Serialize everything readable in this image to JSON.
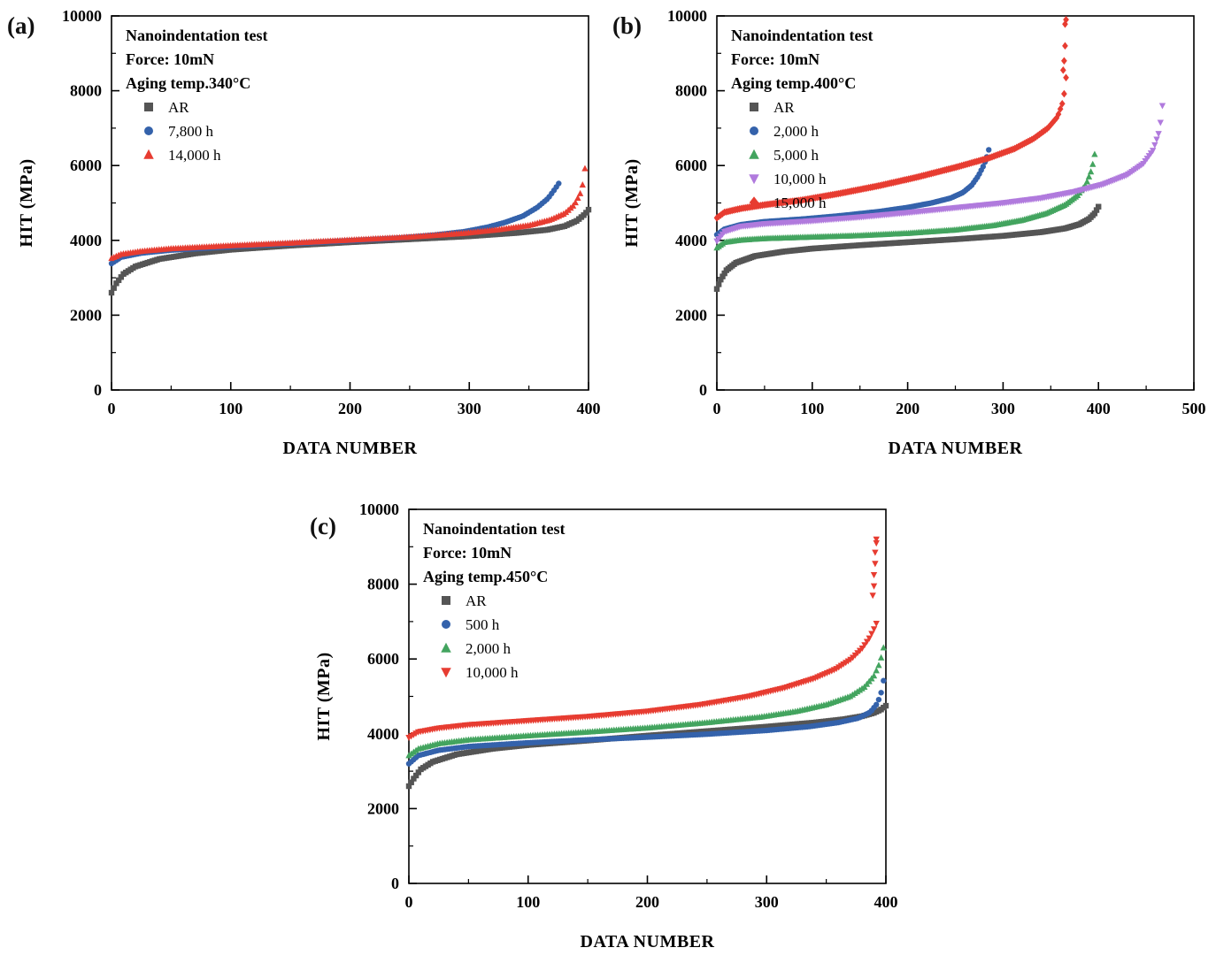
{
  "figure": {
    "background": "#ffffff"
  },
  "chart_data": [
    {
      "panel_label": "(a)",
      "type": "scatter",
      "title_lines": [
        "Nanoindentation test",
        "Force: 10mN",
        "Aging temp.340°C"
      ],
      "xlabel": "DATA NUMBER",
      "ylabel": "HIT (MPa)",
      "xlim": [
        0,
        400
      ],
      "ylim": [
        0,
        10000
      ],
      "xticks": [
        0,
        100,
        200,
        300,
        400
      ],
      "yticks": [
        0,
        2000,
        4000,
        6000,
        8000,
        10000
      ],
      "series": [
        {
          "name": "AR",
          "marker": "square",
          "color": "#555555",
          "n": 200,
          "anchors": [
            [
              0,
              2600
            ],
            [
              4,
              2850
            ],
            [
              10,
              3100
            ],
            [
              20,
              3300
            ],
            [
              40,
              3500
            ],
            [
              70,
              3650
            ],
            [
              100,
              3750
            ],
            [
              150,
              3860
            ],
            [
              200,
              3950
            ],
            [
              250,
              4030
            ],
            [
              300,
              4110
            ],
            [
              340,
              4200
            ],
            [
              365,
              4280
            ],
            [
              380,
              4380
            ],
            [
              390,
              4520
            ],
            [
              397,
              4700
            ],
            [
              400,
              4820
            ]
          ]
        },
        {
          "name": "7,800 h",
          "marker": "circle",
          "color": "#3462ab",
          "n": 190,
          "anchors": [
            [
              0,
              3380
            ],
            [
              8,
              3550
            ],
            [
              25,
              3660
            ],
            [
              50,
              3740
            ],
            [
              100,
              3830
            ],
            [
              150,
              3910
            ],
            [
              200,
              3990
            ],
            [
              240,
              4060
            ],
            [
              270,
              4140
            ],
            [
              295,
              4230
            ],
            [
              315,
              4350
            ],
            [
              330,
              4480
            ],
            [
              345,
              4650
            ],
            [
              357,
              4880
            ],
            [
              366,
              5120
            ],
            [
              372,
              5380
            ],
            [
              375,
              5520
            ]
          ]
        },
        {
          "name": "14,000 h",
          "marker": "triangle-up",
          "color": "#e73c31",
          "n": 200,
          "anchors": [
            [
              0,
              3520
            ],
            [
              8,
              3630
            ],
            [
              25,
              3710
            ],
            [
              50,
              3780
            ],
            [
              100,
              3860
            ],
            [
              150,
              3930
            ],
            [
              200,
              4010
            ],
            [
              250,
              4090
            ],
            [
              295,
              4190
            ],
            [
              325,
              4290
            ],
            [
              350,
              4400
            ],
            [
              368,
              4550
            ],
            [
              380,
              4720
            ],
            [
              388,
              4950
            ],
            [
              393,
              5250
            ],
            [
              396,
              5600
            ],
            [
              397,
              5920
            ]
          ]
        }
      ]
    },
    {
      "panel_label": "(b)",
      "type": "scatter",
      "title_lines": [
        "Nanoindentation test",
        "Force: 10mN",
        "Aging temp.400°C"
      ],
      "xlabel": "DATA NUMBER",
      "ylabel": "HIT (MPa)",
      "xlim": [
        0,
        500
      ],
      "ylim": [
        0,
        10000
      ],
      "xticks": [
        0,
        100,
        200,
        300,
        400,
        500
      ],
      "yticks": [
        0,
        2000,
        4000,
        6000,
        8000,
        10000
      ],
      "series": [
        {
          "name": "AR",
          "marker": "square",
          "color": "#555555",
          "n": 200,
          "anchors": [
            [
              0,
              2700
            ],
            [
              4,
              2950
            ],
            [
              10,
              3200
            ],
            [
              20,
              3400
            ],
            [
              40,
              3580
            ],
            [
              70,
              3700
            ],
            [
              100,
              3780
            ],
            [
              150,
              3870
            ],
            [
              200,
              3950
            ],
            [
              250,
              4030
            ],
            [
              300,
              4120
            ],
            [
              340,
              4220
            ],
            [
              365,
              4320
            ],
            [
              380,
              4430
            ],
            [
              390,
              4570
            ],
            [
              396,
              4720
            ],
            [
              400,
              4900
            ]
          ]
        },
        {
          "name": "2,000 h",
          "marker": "circle",
          "color": "#3462ab",
          "n": 145,
          "anchors": [
            [
              0,
              4150
            ],
            [
              8,
              4300
            ],
            [
              25,
              4420
            ],
            [
              50,
              4500
            ],
            [
              90,
              4570
            ],
            [
              130,
              4660
            ],
            [
              170,
              4770
            ],
            [
              200,
              4880
            ],
            [
              225,
              5000
            ],
            [
              245,
              5130
            ],
            [
              258,
              5280
            ],
            [
              267,
              5470
            ],
            [
              274,
              5720
            ],
            [
              280,
              6020
            ],
            [
              284,
              6300
            ],
            [
              285,
              6420
            ]
          ]
        },
        {
          "name": "5,000 h",
          "marker": "triangle-up",
          "color": "#43a45f",
          "n": 200,
          "anchors": [
            [
              0,
              3800
            ],
            [
              8,
              3950
            ],
            [
              25,
              4010
            ],
            [
              50,
              4050
            ],
            [
              100,
              4090
            ],
            [
              150,
              4130
            ],
            [
              200,
              4190
            ],
            [
              250,
              4280
            ],
            [
              290,
              4400
            ],
            [
              320,
              4540
            ],
            [
              345,
              4720
            ],
            [
              365,
              4950
            ],
            [
              378,
              5200
            ],
            [
              387,
              5500
            ],
            [
              393,
              5900
            ],
            [
              396,
              6300
            ]
          ]
        },
        {
          "name": "10,000 h",
          "marker": "triangle-down",
          "color": "#b07add",
          "n": 235,
          "anchors": [
            [
              0,
              3980
            ],
            [
              8,
              4230
            ],
            [
              25,
              4370
            ],
            [
              50,
              4440
            ],
            [
              100,
              4520
            ],
            [
              150,
              4620
            ],
            [
              200,
              4740
            ],
            [
              250,
              4870
            ],
            [
              300,
              5000
            ],
            [
              340,
              5130
            ],
            [
              375,
              5300
            ],
            [
              405,
              5500
            ],
            [
              430,
              5750
            ],
            [
              447,
              6050
            ],
            [
              457,
              6400
            ],
            [
              463,
              6850
            ],
            [
              466,
              7300
            ],
            [
              467,
              7600
            ]
          ]
        },
        {
          "name": "15,000 h",
          "marker": "diamond",
          "color": "#e73c31",
          "n": 185,
          "anchors": [
            [
              0,
              4600
            ],
            [
              8,
              4750
            ],
            [
              25,
              4850
            ],
            [
              50,
              4950
            ],
            [
              90,
              5080
            ],
            [
              130,
              5260
            ],
            [
              170,
              5460
            ],
            [
              210,
              5690
            ],
            [
              250,
              5950
            ],
            [
              285,
              6200
            ],
            [
              312,
              6450
            ],
            [
              332,
              6720
            ],
            [
              347,
              7000
            ],
            [
              357,
              7300
            ],
            [
              362,
              7650
            ],
            [
              365,
              8050
            ],
            [
              366,
              8350
            ]
          ],
          "extra": [
            [
              363,
              8550
            ],
            [
              364,
              8800
            ],
            [
              365,
              9200
            ],
            [
              365,
              9780
            ],
            [
              366,
              9900
            ]
          ]
        }
      ]
    },
    {
      "panel_label": "(c)",
      "type": "scatter",
      "title_lines": [
        "Nanoindentation test",
        "Force: 10mN",
        "Aging temp.450°C"
      ],
      "xlabel": "DATA NUMBER",
      "ylabel": "HIT (MPa)",
      "xlim": [
        0,
        400
      ],
      "ylim": [
        0,
        10000
      ],
      "xticks": [
        0,
        100,
        200,
        300,
        400
      ],
      "yticks": [
        0,
        2000,
        4000,
        6000,
        8000,
        10000
      ],
      "series": [
        {
          "name": "AR",
          "marker": "square",
          "color": "#555555",
          "n": 200,
          "anchors": [
            [
              0,
              2600
            ],
            [
              4,
              2800
            ],
            [
              10,
              3050
            ],
            [
              20,
              3250
            ],
            [
              40,
              3450
            ],
            [
              70,
              3600
            ],
            [
              100,
              3700
            ],
            [
              150,
              3820
            ],
            [
              200,
              3950
            ],
            [
              250,
              4070
            ],
            [
              300,
              4190
            ],
            [
              340,
              4300
            ],
            [
              365,
              4390
            ],
            [
              380,
              4470
            ],
            [
              390,
              4560
            ],
            [
              396,
              4650
            ],
            [
              400,
              4750
            ]
          ]
        },
        {
          "name": "500 h",
          "marker": "circle",
          "color": "#3462ab",
          "n": 200,
          "anchors": [
            [
              0,
              3200
            ],
            [
              8,
              3420
            ],
            [
              25,
              3560
            ],
            [
              50,
              3660
            ],
            [
              100,
              3760
            ],
            [
              150,
              3840
            ],
            [
              200,
              3910
            ],
            [
              250,
              3990
            ],
            [
              300,
              4090
            ],
            [
              335,
              4190
            ],
            [
              360,
              4300
            ],
            [
              377,
              4420
            ],
            [
              387,
              4580
            ],
            [
              393,
              4820
            ],
            [
              396,
              5100
            ],
            [
              398,
              5420
            ]
          ]
        },
        {
          "name": "2,000 h",
          "marker": "triangle-up",
          "color": "#43a45f",
          "n": 200,
          "anchors": [
            [
              0,
              3420
            ],
            [
              8,
              3600
            ],
            [
              25,
              3740
            ],
            [
              50,
              3840
            ],
            [
              100,
              3950
            ],
            [
              150,
              4050
            ],
            [
              200,
              4160
            ],
            [
              250,
              4300
            ],
            [
              295,
              4450
            ],
            [
              325,
              4600
            ],
            [
              350,
              4780
            ],
            [
              370,
              5000
            ],
            [
              382,
              5250
            ],
            [
              390,
              5550
            ],
            [
              395,
              5900
            ],
            [
              398,
              6300
            ]
          ]
        },
        {
          "name": "10,000 h",
          "marker": "triangle-down",
          "color": "#e73c31",
          "n": 200,
          "anchors": [
            [
              0,
              3900
            ],
            [
              8,
              4050
            ],
            [
              25,
              4150
            ],
            [
              50,
              4240
            ],
            [
              100,
              4350
            ],
            [
              150,
              4460
            ],
            [
              200,
              4600
            ],
            [
              245,
              4780
            ],
            [
              285,
              5000
            ],
            [
              315,
              5230
            ],
            [
              340,
              5480
            ],
            [
              358,
              5730
            ],
            [
              371,
              6000
            ],
            [
              380,
              6280
            ],
            [
              386,
              6550
            ],
            [
              390,
              6800
            ],
            [
              392,
              6950
            ]
          ],
          "extra": [
            [
              389,
              7700
            ],
            [
              390,
              7950
            ],
            [
              390,
              8250
            ],
            [
              391,
              8550
            ],
            [
              391,
              8850
            ],
            [
              392,
              9100
            ],
            [
              392,
              9200
            ]
          ]
        }
      ]
    }
  ]
}
